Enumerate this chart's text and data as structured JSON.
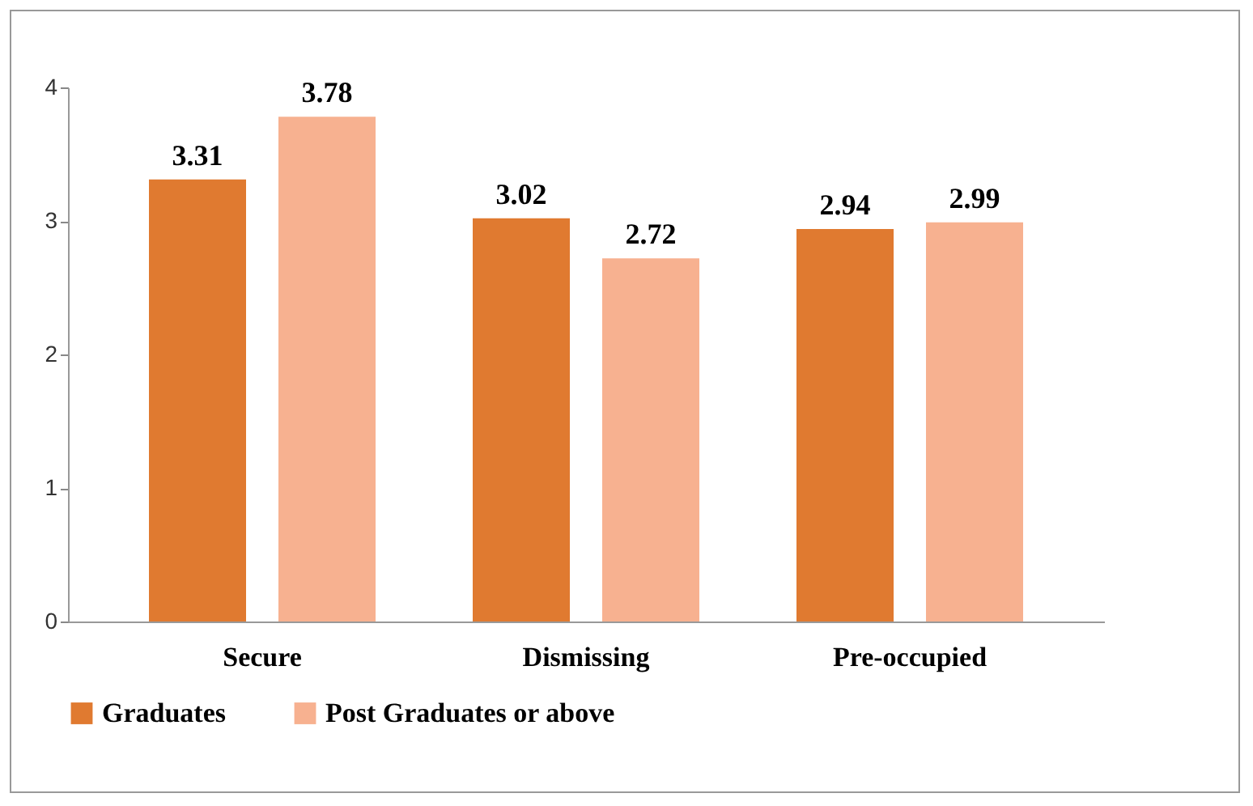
{
  "chart_data": {
    "type": "bar",
    "categories": [
      "Secure",
      "Dismissing",
      "Pre-occupied"
    ],
    "series": [
      {
        "name": "Graduates",
        "color": "#e07a30",
        "values": [
          3.31,
          3.02,
          2.94
        ]
      },
      {
        "name": "Post Graduates or above",
        "color": "#f7b190",
        "values": [
          3.78,
          2.72,
          2.99
        ]
      }
    ],
    "ylim": [
      0,
      4
    ],
    "yticks": [
      0,
      1,
      2,
      3,
      4
    ],
    "grid": false,
    "legend": "bottom",
    "data_labels": true
  }
}
